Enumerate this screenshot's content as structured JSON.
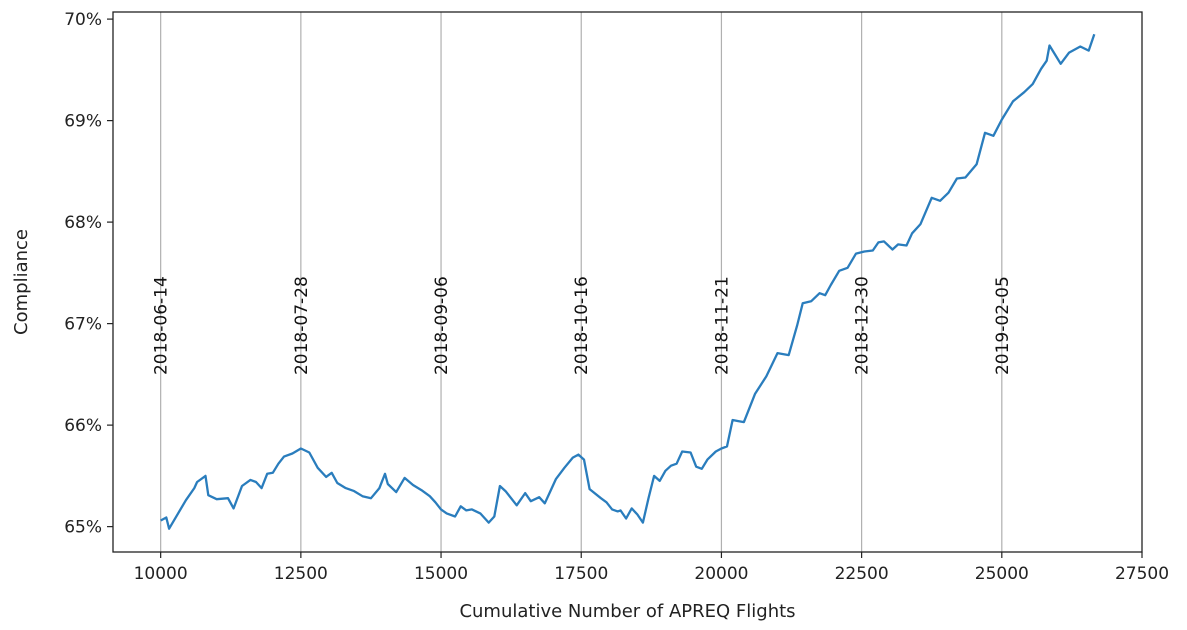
{
  "chart_data": {
    "type": "line",
    "xlabel": "Cumulative Number of APREQ Flights",
    "ylabel": "Compliance",
    "xlim": [
      9150,
      27500
    ],
    "ylim": [
      64.75,
      70.07
    ],
    "x_ticks": [
      10000,
      12500,
      15000,
      17500,
      20000,
      22500,
      25000,
      27500
    ],
    "x_tick_labels": [
      "10000",
      "12500",
      "15000",
      "17500",
      "20000",
      "22500",
      "25000",
      "27500"
    ],
    "y_ticks": [
      65,
      66,
      67,
      68,
      69,
      70
    ],
    "y_tick_labels": [
      "65%",
      "66%",
      "67%",
      "68%",
      "69%",
      "70%"
    ],
    "grid": false,
    "legend": "none",
    "line_color": "#2a7dbd",
    "annotations": [
      {
        "x": 10000,
        "label": "2018-06-14"
      },
      {
        "x": 12500,
        "label": "2018-07-28"
      },
      {
        "x": 15000,
        "label": "2018-09-06"
      },
      {
        "x": 17500,
        "label": "2018-10-16"
      },
      {
        "x": 20000,
        "label": "2018-11-21"
      },
      {
        "x": 22500,
        "label": "2018-12-30"
      },
      {
        "x": 25000,
        "label": "2019-02-05"
      }
    ],
    "series": [
      {
        "x": [
          10000,
          10100,
          10150,
          10300,
          10450,
          10600,
          10650,
          10800,
          10850,
          11000,
          11200,
          11300,
          11450,
          11600,
          11700,
          11800,
          11900,
          12000,
          12100,
          12200,
          12350,
          12500,
          12650,
          12800,
          12950,
          13050,
          13150,
          13300,
          13450,
          13600,
          13750,
          13900,
          14000,
          14050,
          14200,
          14350,
          14500,
          14650,
          14800,
          14900,
          15000,
          15100,
          15250,
          15350,
          15450,
          15550,
          15700,
          15850,
          15950,
          16050,
          16150,
          16350,
          16500,
          16600,
          16750,
          16850,
          16950,
          17050,
          17200,
          17350,
          17450,
          17550,
          17650,
          17850,
          17950,
          18050,
          18150,
          18200,
          18300,
          18400,
          18500,
          18600,
          18700,
          18800,
          18900,
          19000,
          19100,
          19200,
          19300,
          19450,
          19550,
          19650,
          19750,
          19900,
          20000,
          20100,
          20200,
          20300,
          20400,
          20600,
          20800,
          21000,
          21200,
          21350,
          21450,
          21600,
          21750,
          21850,
          21950,
          22100,
          22250,
          22400,
          22550,
          22700,
          22800,
          22900,
          23050,
          23150,
          23300,
          23400,
          23550,
          23750,
          23900,
          24050,
          24200,
          24350,
          24550,
          24700,
          24850,
          25000,
          25200,
          25400,
          25550,
          25700,
          25800,
          25850,
          25950,
          26050,
          26200,
          26400,
          26550,
          26650
        ],
        "y": [
          65.06,
          65.09,
          64.98,
          65.12,
          65.26,
          65.38,
          65.44,
          65.5,
          65.31,
          65.27,
          65.28,
          65.18,
          65.4,
          65.46,
          65.44,
          65.38,
          65.52,
          65.53,
          65.62,
          65.69,
          65.72,
          65.77,
          65.73,
          65.58,
          65.49,
          65.53,
          65.43,
          65.38,
          65.35,
          65.3,
          65.28,
          65.38,
          65.52,
          65.42,
          65.34,
          65.48,
          65.41,
          65.36,
          65.3,
          65.24,
          65.17,
          65.13,
          65.1,
          65.2,
          65.16,
          65.17,
          65.13,
          65.04,
          65.1,
          65.4,
          65.35,
          65.21,
          65.33,
          65.25,
          65.29,
          65.23,
          65.35,
          65.47,
          65.58,
          65.68,
          65.71,
          65.66,
          65.37,
          65.28,
          65.24,
          65.17,
          65.15,
          65.16,
          65.08,
          65.18,
          65.12,
          65.04,
          65.28,
          65.5,
          65.45,
          65.55,
          65.6,
          65.62,
          65.74,
          65.73,
          65.59,
          65.57,
          65.66,
          65.74,
          65.77,
          65.79,
          66.05,
          66.04,
          66.03,
          66.31,
          66.48,
          66.71,
          66.69,
          66.98,
          67.2,
          67.22,
          67.3,
          67.28,
          67.38,
          67.52,
          67.55,
          67.69,
          67.71,
          67.72,
          67.8,
          67.81,
          67.73,
          67.78,
          67.77,
          67.89,
          67.98,
          68.24,
          68.21,
          68.29,
          68.43,
          68.44,
          68.57,
          68.88,
          68.85,
          69.01,
          69.19,
          69.28,
          69.36,
          69.51,
          69.59,
          69.74,
          69.65,
          69.56,
          69.67,
          69.73,
          69.69,
          69.85
        ]
      }
    ]
  }
}
